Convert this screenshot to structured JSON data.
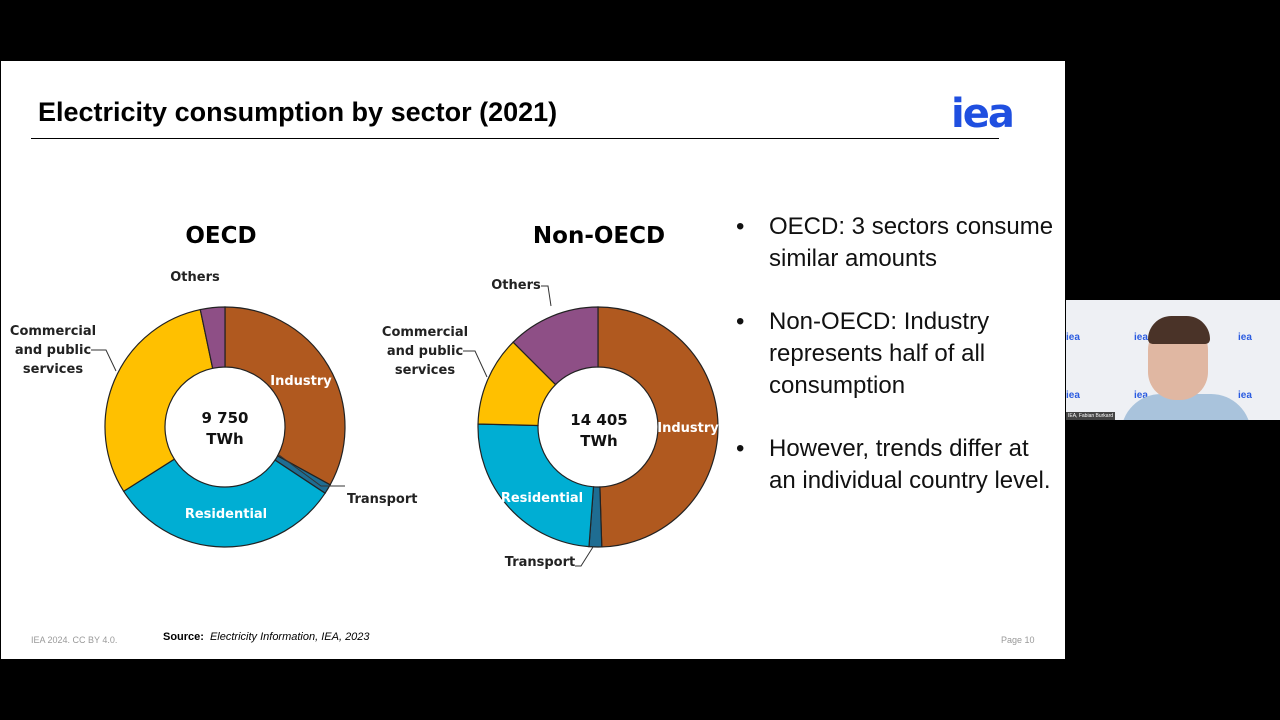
{
  "slide": {
    "title": "Electricity consumption by sector (2021)",
    "logo": "iea",
    "bullets": [
      "OECD: 3 sectors consume similar amounts",
      "Non-OECD: Industry represents half of all consumption",
      "However, trends differ at an individual country level."
    ],
    "footer_left": "IEA 2024. CC BY 4.0.",
    "source_label": "Source:",
    "source_text": "Electricity Information, IEA, 2023",
    "page": "Page 10"
  },
  "webcam": {
    "name": "IEA, Fabian Burkard",
    "watermark": "iea"
  },
  "colors": {
    "Industry": "#b0591f",
    "Transport": "#1f6d92",
    "Residential": "#00aed3",
    "Commercial and public services": "#ffc000",
    "Others": "#8e4f86"
  },
  "chart_data": [
    {
      "type": "pie",
      "title": "OECD",
      "center_label": [
        "9 750",
        "TWh"
      ],
      "categories": [
        "Industry",
        "Transport",
        "Residential",
        "Commercial and public services",
        "Others"
      ],
      "values": [
        33,
        1.3,
        31.7,
        30.7,
        3.3
      ],
      "unit": "percent (approx.)"
    },
    {
      "type": "pie",
      "title": "Non-OECD",
      "center_label": [
        "14 405",
        "TWh"
      ],
      "categories": [
        "Industry",
        "Transport",
        "Residential",
        "Commercial and public services",
        "Others"
      ],
      "values": [
        49.5,
        1.7,
        24.2,
        12.1,
        12.5
      ],
      "unit": "percent (approx.)"
    }
  ]
}
